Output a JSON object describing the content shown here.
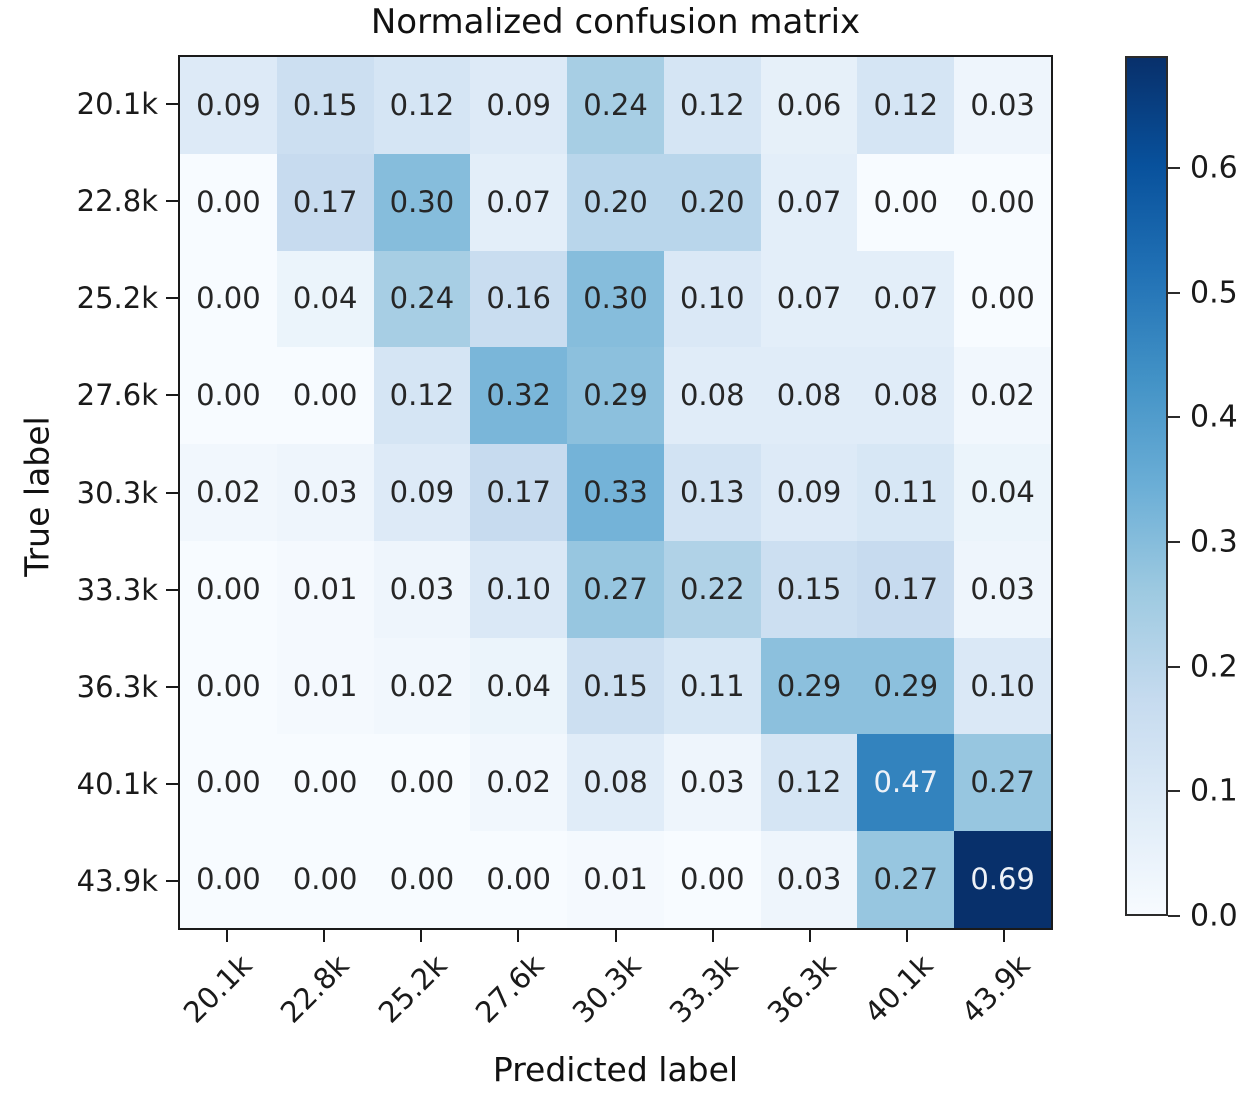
{
  "chart_data": {
    "type": "heatmap",
    "title": "Normalized confusion matrix",
    "xlabel": "Predicted label",
    "ylabel": "True label",
    "x_categories": [
      "20.1k",
      "22.8k",
      "25.2k",
      "27.6k",
      "30.3k",
      "33.3k",
      "36.3k",
      "40.1k",
      "43.9k"
    ],
    "y_categories": [
      "20.1k",
      "22.8k",
      "25.2k",
      "27.6k",
      "30.3k",
      "33.3k",
      "36.3k",
      "40.1k",
      "43.9k"
    ],
    "matrix": [
      [
        "0.09",
        "0.15",
        "0.12",
        "0.09",
        "0.24",
        "0.12",
        "0.06",
        "0.12",
        "0.03"
      ],
      [
        "0.00",
        "0.17",
        "0.30",
        "0.07",
        "0.20",
        "0.20",
        "0.07",
        "0.00",
        "0.00"
      ],
      [
        "0.00",
        "0.04",
        "0.24",
        "0.16",
        "0.30",
        "0.10",
        "0.07",
        "0.07",
        "0.00"
      ],
      [
        "0.00",
        "0.00",
        "0.12",
        "0.32",
        "0.29",
        "0.08",
        "0.08",
        "0.08",
        "0.02"
      ],
      [
        "0.02",
        "0.03",
        "0.09",
        "0.17",
        "0.33",
        "0.13",
        "0.09",
        "0.11",
        "0.04"
      ],
      [
        "0.00",
        "0.01",
        "0.03",
        "0.10",
        "0.27",
        "0.22",
        "0.15",
        "0.17",
        "0.03"
      ],
      [
        "0.00",
        "0.01",
        "0.02",
        "0.04",
        "0.15",
        "0.11",
        "0.29",
        "0.29",
        "0.10"
      ],
      [
        "0.00",
        "0.00",
        "0.00",
        "0.02",
        "0.08",
        "0.03",
        "0.12",
        "0.47",
        "0.27"
      ],
      [
        "0.00",
        "0.00",
        "0.00",
        "0.00",
        "0.01",
        "0.00",
        "0.03",
        "0.27",
        "0.69"
      ]
    ],
    "colormap": "Blues",
    "colormap_hex": [
      "#f7fbff",
      "#deebf7",
      "#c6dbef",
      "#9ecae1",
      "#6baed6",
      "#4292c6",
      "#2171b5",
      "#08519c",
      "#08306b"
    ],
    "vmin": 0.0,
    "vmax": 0.69,
    "cell_text_dark": "#262626",
    "cell_text_light": "#eef2f8",
    "colorbar_ticks": [
      "0.6",
      "0.5",
      "0.4",
      "0.3",
      "0.2",
      "0.1",
      "0.0"
    ],
    "legend_position": "right-colorbar",
    "grid": false
  }
}
